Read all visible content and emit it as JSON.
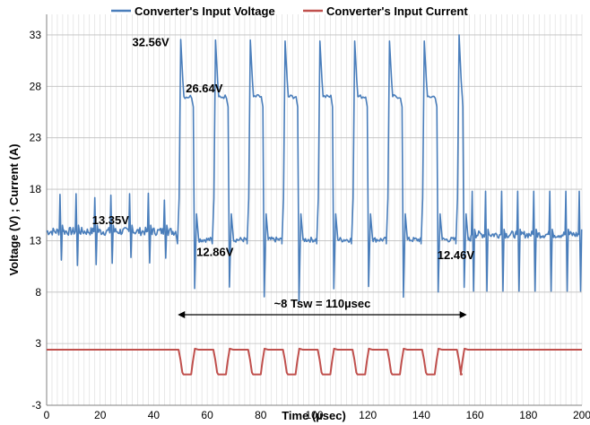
{
  "chart_data": {
    "type": "line",
    "xlabel": "Time (µsec)",
    "ylabel": "Voltage (V) ; Current (A)",
    "xlim": [
      0,
      200
    ],
    "ylim": [
      -3,
      35
    ],
    "x_ticks": [
      0,
      20,
      40,
      60,
      80,
      100,
      120,
      140,
      160,
      180,
      200
    ],
    "y_ticks": [
      -3,
      3,
      8,
      13,
      18,
      23,
      28,
      33
    ],
    "grid": true,
    "legend_position": "top",
    "series": [
      {
        "name": "Converter's Input Voltage",
        "color": "#4a7ebb",
        "baseline_before": 13.9,
        "baseline_between": 13.1,
        "baseline_after": 13.6,
        "spikes_before_x": [
          5,
          11,
          18,
          24,
          31,
          38,
          44
        ],
        "pulses": [
          {
            "x_start": 49.5,
            "x_end": 54.8,
            "peak": 32.56,
            "plateau": 27.0
          },
          {
            "x_start": 62.5,
            "x_end": 67.8,
            "peak": 32.5,
            "plateau": 27.0
          },
          {
            "x_start": 75.5,
            "x_end": 80.8,
            "peak": 32.5,
            "plateau": 27.0
          },
          {
            "x_start": 88.5,
            "x_end": 93.8,
            "peak": 32.4,
            "plateau": 27.0
          },
          {
            "x_start": 101.5,
            "x_end": 106.8,
            "peak": 32.4,
            "plateau": 27.0
          },
          {
            "x_start": 114.5,
            "x_end": 119.8,
            "peak": 32.4,
            "plateau": 27.0
          },
          {
            "x_start": 127.5,
            "x_end": 132.8,
            "peak": 32.4,
            "plateau": 27.0
          },
          {
            "x_start": 140.5,
            "x_end": 145.8,
            "peak": 32.4,
            "plateau": 27.0
          },
          {
            "x_start": 153.5,
            "x_end": 155.5,
            "peak": 33.0,
            "plateau": 27.0
          }
        ],
        "spikes_after_x": [
          159,
          164,
          170,
          176,
          182,
          188,
          194,
          199
        ]
      },
      {
        "name": "Converter's Input Current",
        "color": "#c0504d",
        "baseline": 2.4,
        "dip_low": 0.0,
        "dips": [
          {
            "x_start": 49.5,
            "x_end": 54.8
          },
          {
            "x_start": 62.5,
            "x_end": 67.8
          },
          {
            "x_start": 75.5,
            "x_end": 80.8
          },
          {
            "x_start": 88.5,
            "x_end": 93.8
          },
          {
            "x_start": 101.5,
            "x_end": 106.8
          },
          {
            "x_start": 114.5,
            "x_end": 119.8
          },
          {
            "x_start": 127.5,
            "x_end": 132.8
          },
          {
            "x_start": 140.5,
            "x_end": 145.8
          },
          {
            "x_start": 153.5,
            "x_end": 155.5
          }
        ]
      }
    ],
    "annotations": [
      {
        "text": "32.56V",
        "x": 32,
        "y": 31.9,
        "anchor": "start"
      },
      {
        "text": "26.64V",
        "x": 52,
        "y": 27.4,
        "anchor": "start"
      },
      {
        "text": "13.35V",
        "x": 17,
        "y": 14.6,
        "anchor": "start"
      },
      {
        "text": "12.86V",
        "x": 56,
        "y": 11.5,
        "anchor": "start"
      },
      {
        "text": "12.46V",
        "x": 146,
        "y": 11.2,
        "anchor": "start"
      }
    ],
    "span_marker": {
      "label": "~8 Tsw = 110µsec",
      "x_start": 49,
      "x_end": 157,
      "y": 5.8
    }
  }
}
